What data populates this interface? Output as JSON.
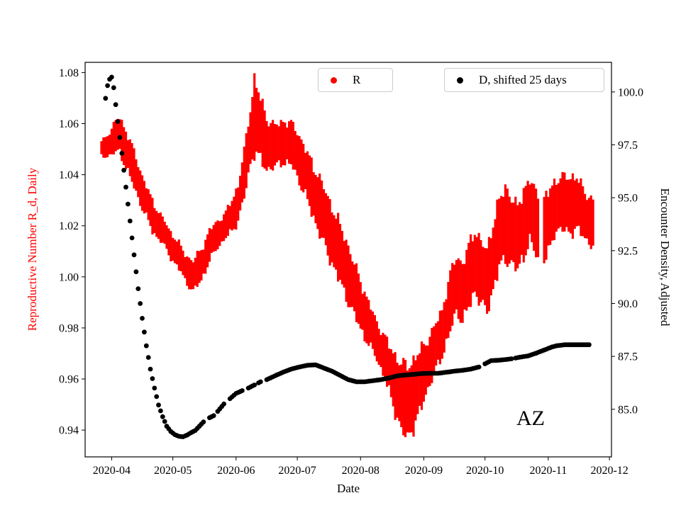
{
  "figure": {
    "xlabel": "Date",
    "ylabel_left": "Reproductive Number R_d, Daily",
    "ylabel_right": "Encounter Density, Adjusted",
    "annotation": "AZ",
    "legend_r_label": "R",
    "legend_d_label": "D, shifted 25 days",
    "accent_red": "#ff0000",
    "accent_black": "#000000"
  },
  "chart_data": {
    "type": "scatter",
    "title": "",
    "xlabel": "Date",
    "ylabel_left": "Reproductive Number R_d, Daily",
    "ylabel_right": "Encounter Density, Adjusted",
    "annotation": "AZ",
    "legend_position": "upper center",
    "grid": false,
    "x_axis": {
      "epoch": "2020-04-01",
      "xlim_days": [
        -13,
        245
      ],
      "tick_days": [
        0,
        30,
        61,
        91,
        122,
        153,
        183,
        214,
        244
      ],
      "tick_labels": [
        "2020-04",
        "2020-05",
        "2020-06",
        "2020-07",
        "2020-08",
        "2020-09",
        "2020-10",
        "2020-11",
        "2020-12"
      ]
    },
    "y_left": {
      "label": "Reproductive Number R_d, Daily",
      "color": "#ff0000",
      "lim": [
        0.9295,
        1.084
      ],
      "tick_values": [
        0.94,
        0.96,
        0.98,
        1.0,
        1.02,
        1.04,
        1.06,
        1.08
      ],
      "tick_labels": [
        "0.94",
        "0.96",
        "0.98",
        "1.00",
        "1.02",
        "1.04",
        "1.06",
        "1.08"
      ]
    },
    "y_right": {
      "label": "Encounter Density, Adjusted",
      "color": "#000000",
      "lim": [
        82.75,
        101.4
      ],
      "tick_values": [
        85.0,
        87.5,
        90.0,
        92.5,
        95.0,
        97.5,
        100.0
      ],
      "tick_labels": [
        "85.0",
        "87.5",
        "90.0",
        "92.5",
        "95.0",
        "97.5",
        "100.0"
      ]
    },
    "series": [
      {
        "name": "R",
        "axis": "left",
        "style": "band",
        "color": "#ff0000",
        "x": [
          -5,
          0,
          4,
          8,
          12,
          16,
          20,
          24,
          28,
          32,
          36,
          40,
          44,
          48,
          52,
          56,
          59,
          62,
          65,
          68,
          70,
          73,
          76,
          80,
          84,
          88,
          91,
          95,
          99,
          103,
          107,
          111,
          115,
          119,
          123,
          127,
          130,
          133,
          136,
          139,
          142,
          145,
          148,
          151,
          154,
          158,
          162,
          166,
          169,
          172,
          175,
          178,
          181,
          184,
          187,
          190,
          193,
          196,
          199,
          202,
          205,
          208,
          211,
          214,
          217,
          220,
          224,
          228,
          232,
          236
        ],
        "center": [
          1.05,
          1.053,
          1.056,
          1.048,
          1.04,
          1.031,
          1.024,
          1.019,
          1.014,
          1.009,
          1.004,
          1.0,
          1.005,
          1.012,
          1.017,
          1.02,
          1.024,
          1.029,
          1.04,
          1.055,
          1.063,
          1.058,
          1.052,
          1.051,
          1.053,
          1.052,
          1.048,
          1.041,
          1.033,
          1.026,
          1.018,
          1.011,
          1.003,
          0.995,
          0.987,
          0.98,
          0.975,
          0.97,
          0.964,
          0.958,
          0.953,
          0.951,
          0.954,
          0.959,
          0.964,
          0.971,
          0.978,
          0.99,
          0.997,
          0.994,
          1.0,
          1.006,
          1.002,
          0.998,
          1.008,
          1.017,
          1.021,
          1.018,
          1.015,
          1.021,
          1.026,
          1.021,
          1.017,
          1.021,
          1.027,
          1.029,
          1.028,
          1.029,
          1.024,
          1.021
        ],
        "half": [
          0.003,
          0.005,
          0.007,
          0.007,
          0.007,
          0.006,
          0.006,
          0.005,
          0.005,
          0.005,
          0.005,
          0.006,
          0.006,
          0.006,
          0.005,
          0.005,
          0.006,
          0.007,
          0.009,
          0.011,
          0.014,
          0.012,
          0.01,
          0.008,
          0.008,
          0.008,
          0.009,
          0.009,
          0.01,
          0.011,
          0.011,
          0.011,
          0.011,
          0.01,
          0.009,
          0.008,
          0.007,
          0.008,
          0.009,
          0.011,
          0.013,
          0.014,
          0.013,
          0.012,
          0.01,
          0.009,
          0.009,
          0.011,
          0.011,
          0.011,
          0.012,
          0.012,
          0.012,
          0.012,
          0.013,
          0.013,
          0.014,
          0.013,
          0.012,
          0.013,
          0.012,
          0.012,
          0.012,
          0.012,
          0.01,
          0.01,
          0.011,
          0.01,
          0.009,
          0.009
        ],
        "gaps": [
          [
            209.5,
            211.5
          ]
        ]
      },
      {
        "name": "D, shifted 25 days",
        "axis": "right",
        "style": "dots",
        "color": "#000000",
        "marker_radius": 3.4,
        "points": [
          [
            -3,
            99.7
          ],
          [
            -2,
            100.3
          ],
          [
            -1,
            100.6
          ],
          [
            0,
            100.7
          ],
          [
            1,
            100.2
          ],
          [
            3,
            98.6
          ],
          [
            5,
            97.1
          ],
          [
            7,
            95.5
          ],
          [
            9,
            93.9
          ],
          [
            11,
            92.3
          ],
          [
            13,
            90.7
          ],
          [
            15,
            89.3
          ],
          [
            17,
            88.0
          ],
          [
            19,
            86.9
          ],
          [
            21,
            86.0
          ],
          [
            23,
            85.2
          ],
          [
            25,
            84.65
          ],
          [
            27,
            84.2
          ],
          [
            29,
            83.95
          ],
          [
            31,
            83.8
          ],
          [
            33,
            83.72
          ],
          [
            35,
            83.7
          ],
          [
            37,
            83.78
          ],
          [
            39,
            83.9
          ],
          [
            41,
            84.0
          ],
          [
            43,
            84.2
          ],
          [
            45,
            84.4
          ],
          [
            48,
            84.6
          ],
          [
            50,
            84.7
          ],
          [
            52,
            84.9
          ],
          [
            55,
            85.25
          ],
          [
            58,
            85.5
          ],
          [
            61,
            85.75
          ],
          [
            64,
            85.88
          ],
          [
            67,
            86.0
          ],
          [
            70,
            86.15
          ],
          [
            73,
            86.3
          ],
          [
            76,
            86.4
          ],
          [
            80,
            86.58
          ],
          [
            84,
            86.75
          ],
          [
            88,
            86.9
          ],
          [
            92,
            87.0
          ],
          [
            96,
            87.08
          ],
          [
            100,
            87.1
          ],
          [
            104,
            86.95
          ],
          [
            108,
            86.8
          ],
          [
            112,
            86.6
          ],
          [
            116,
            86.4
          ],
          [
            120,
            86.3
          ],
          [
            124,
            86.3
          ],
          [
            128,
            86.35
          ],
          [
            132,
            86.4
          ],
          [
            136,
            86.48
          ],
          [
            140,
            86.58
          ],
          [
            144,
            86.62
          ],
          [
            148,
            86.65
          ],
          [
            152,
            86.69
          ],
          [
            156,
            86.7
          ],
          [
            160,
            86.7
          ],
          [
            164,
            86.75
          ],
          [
            168,
            86.8
          ],
          [
            172,
            86.84
          ],
          [
            176,
            86.9
          ],
          [
            180,
            87.0
          ],
          [
            183,
            87.15
          ],
          [
            186,
            87.3
          ],
          [
            190,
            87.32
          ],
          [
            194,
            87.36
          ],
          [
            197,
            87.4
          ],
          [
            200,
            87.46
          ],
          [
            204,
            87.52
          ],
          [
            208,
            87.65
          ],
          [
            212,
            87.8
          ],
          [
            216,
            87.95
          ],
          [
            218,
            88.0
          ],
          [
            222,
            88.05
          ],
          [
            226,
            88.05
          ],
          [
            230,
            88.05
          ],
          [
            234,
            88.05
          ]
        ],
        "gaps": [
          [
            46,
            47.4
          ],
          [
            50.3,
            51.4
          ],
          [
            56,
            57.4
          ],
          [
            65,
            66.4
          ],
          [
            70.4,
            71.4
          ],
          [
            74,
            75.4
          ],
          [
            180.5,
            182.4
          ],
          [
            196.4,
            197.9
          ]
        ]
      }
    ]
  }
}
